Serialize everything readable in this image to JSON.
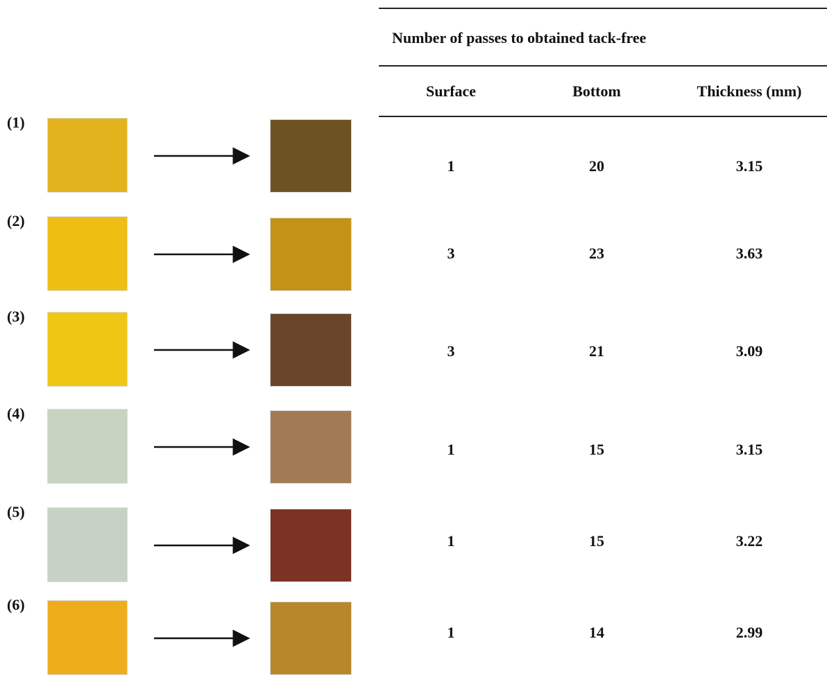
{
  "table": {
    "title": "Number of passes to obtained tack-free",
    "headers": [
      "Surface",
      "Bottom",
      "Thickness (mm)"
    ],
    "rows": [
      {
        "label": "(1)",
        "values": [
          1,
          20,
          3.15
        ]
      },
      {
        "label": "(2)",
        "values": [
          3,
          23,
          3.63
        ]
      },
      {
        "label": "(3)",
        "values": [
          3,
          21,
          3.09
        ]
      },
      {
        "label": "(4)",
        "values": [
          1,
          15,
          3.15
        ]
      },
      {
        "label": "(5)",
        "values": [
          1,
          15,
          3.22
        ]
      },
      {
        "label": "(6)",
        "values": [
          1,
          14,
          2.99
        ]
      }
    ]
  }
}
